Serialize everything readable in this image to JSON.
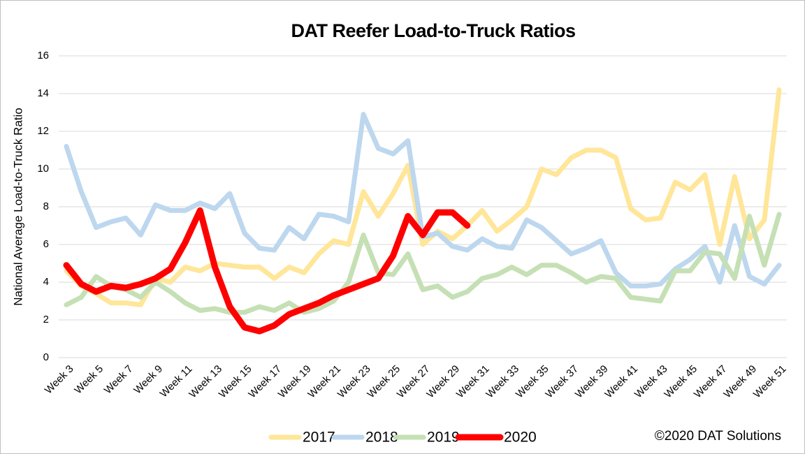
{
  "chart_data": {
    "type": "line",
    "title": "DAT Reefer Load-to-Truck Ratios",
    "y_label": "National Average Load-to-Truck Ratio",
    "annotation": "©2020 DAT Solutions",
    "categories": [
      "Week 3",
      null,
      "Week 5",
      null,
      "Week 7",
      null,
      "Week 9",
      null,
      "Week 11",
      null,
      "Week 13",
      null,
      "Week 15",
      null,
      "Week 17",
      null,
      "Week 19",
      null,
      "Week 21",
      null,
      "Week 23",
      null,
      "Week 25",
      null,
      "Week 27",
      null,
      "Week 29",
      null,
      "Week 31",
      null,
      "Week 33",
      null,
      "Week 35",
      null,
      "Week 37",
      null,
      "Week 39",
      null,
      "Week 41",
      null,
      "Week 43",
      null,
      "Week 45",
      null,
      "Week 47",
      null,
      "Week 49",
      null,
      "Week 51"
    ],
    "series": [
      {
        "name": "2017",
        "color": "#ffe699",
        "values": [
          4.6,
          3.8,
          3.4,
          2.9,
          2.9,
          2.8,
          4.2,
          4.0,
          4.8,
          4.6,
          5.0,
          4.9,
          4.8,
          4.8,
          4.2,
          4.8,
          4.5,
          5.5,
          6.2,
          6.0,
          8.8,
          7.5,
          8.7,
          10.2,
          6.0,
          6.7,
          6.3,
          7.0,
          7.8,
          6.7,
          7.3,
          8.0,
          10.0,
          9.7,
          10.6,
          11.0,
          11.0,
          10.6,
          7.9,
          7.3,
          7.4,
          9.3,
          8.9,
          9.7,
          6.0,
          9.6,
          6.3,
          7.3,
          14.2
        ]
      },
      {
        "name": "2018",
        "color": "#bdd7ee",
        "values": [
          11.2,
          8.8,
          6.9,
          7.2,
          7.4,
          6.5,
          8.1,
          7.8,
          7.8,
          8.2,
          7.9,
          8.7,
          6.6,
          5.8,
          5.7,
          6.9,
          6.3,
          7.6,
          7.5,
          7.2,
          12.9,
          11.1,
          10.8,
          11.5,
          6.4,
          6.6,
          5.9,
          5.7,
          6.3,
          5.9,
          5.8,
          7.3,
          6.9,
          6.2,
          5.5,
          5.8,
          6.2,
          4.5,
          3.8,
          3.8,
          3.9,
          4.7,
          5.2,
          5.9,
          4.0,
          7.0,
          4.3,
          3.9,
          4.9
        ]
      },
      {
        "name": "2019",
        "color": "#c5e0b4",
        "values": [
          2.8,
          3.2,
          4.3,
          3.8,
          3.6,
          3.2,
          4.0,
          3.5,
          2.9,
          2.5,
          2.6,
          2.4,
          2.4,
          2.7,
          2.5,
          2.9,
          2.4,
          2.6,
          3.0,
          4.0,
          6.5,
          4.5,
          4.4,
          5.5,
          3.6,
          3.8,
          3.2,
          3.5,
          4.2,
          4.4,
          4.8,
          4.4,
          4.9,
          4.9,
          4.5,
          4.0,
          4.3,
          4.2,
          3.2,
          3.1,
          3.0,
          4.6,
          4.6,
          5.6,
          5.5,
          4.2,
          7.5,
          4.9,
          7.6
        ]
      },
      {
        "name": "2020",
        "color": "#ff0000",
        "values": [
          4.9,
          3.9,
          3.5,
          3.8,
          3.7,
          3.9,
          4.2,
          4.7,
          6.1,
          7.8,
          4.8,
          2.7,
          1.6,
          1.4,
          1.7,
          2.3,
          2.6,
          2.9,
          3.3,
          3.6,
          3.9,
          4.2,
          5.4,
          7.5,
          6.5,
          7.7,
          7.7,
          7.0,
          null,
          null,
          null,
          null,
          null,
          null,
          null,
          null,
          null,
          null,
          null,
          null,
          null,
          null,
          null,
          null,
          null,
          null,
          null,
          null,
          null
        ]
      }
    ],
    "ylim": [
      0,
      16
    ],
    "yticks": [
      0,
      2,
      4,
      6,
      8,
      10,
      12,
      14,
      16
    ],
    "grid": true,
    "legend": "bottom"
  }
}
